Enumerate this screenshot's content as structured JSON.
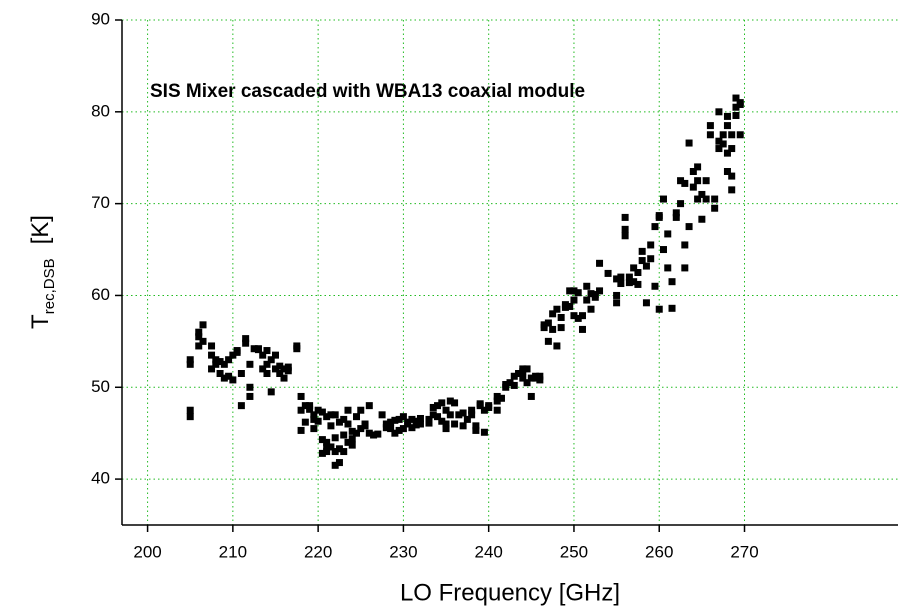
{
  "chart_data": {
    "type": "scatter",
    "annotation": "SIS Mixer cascaded with WBA13 coaxial module",
    "x_label": "LO Frequency [GHz]",
    "y_label": {
      "symbol": "T",
      "subscript": "rec,DSB",
      "unit": "[K]"
    },
    "color": "#000000",
    "grid": true,
    "grid_color": "#22bb22",
    "xlim": [
      197,
      288
    ],
    "ylim": [
      35,
      90
    ],
    "xticks": [
      200,
      210,
      220,
      230,
      240,
      250,
      260,
      270
    ],
    "yticks": [
      40,
      50,
      60,
      70,
      80,
      90
    ],
    "x": [
      205,
      205,
      205,
      205,
      206,
      206,
      206,
      206.5,
      206.5,
      207.5,
      207.5,
      207.5,
      208,
      208,
      208.5,
      208.5,
      209,
      209,
      209.5,
      209.5,
      210,
      210,
      210.5,
      210.5,
      211,
      211,
      211.5,
      211.5,
      212,
      212,
      212,
      212.5,
      213,
      213,
      213.5,
      213.5,
      214,
      214,
      214,
      214.5,
      214.5,
      215,
      215,
      215.5,
      215.5,
      216,
      216,
      216.5,
      216.5,
      217.5,
      217.5,
      218,
      218,
      218,
      218.5,
      218.5,
      219,
      219,
      219.5,
      219.5,
      219.5,
      220,
      220,
      220.5,
      220.5,
      220.5,
      221,
      221,
      221,
      221,
      221.5,
      221.5,
      221.5,
      222,
      222,
      222,
      222,
      222.5,
      222.5,
      222.5,
      223,
      223,
      223,
      223.5,
      223.5,
      223.5,
      224,
      224,
      224,
      224.5,
      224.5,
      225,
      225,
      225.5,
      225.5,
      226,
      226,
      226.5,
      227,
      227.5,
      228,
      228,
      228.5,
      228.5,
      229,
      229,
      229.5,
      229.5,
      230,
      230,
      230.5,
      230.5,
      231,
      231,
      231.5,
      231.5,
      232,
      232,
      233,
      233,
      233.5,
      233.5,
      234,
      234,
      234.5,
      234.5,
      235,
      235,
      235,
      235.5,
      235.5,
      236,
      236,
      236.5,
      237,
      237,
      237.5,
      238,
      238,
      238.5,
      238.5,
      239,
      239,
      239.5,
      239.5,
      240,
      240,
      241,
      241,
      241,
      241.5,
      242,
      242,
      242.5,
      243,
      243,
      243.5,
      244,
      244,
      244,
      244.5,
      244.5,
      245,
      245,
      245.5,
      245.5,
      246,
      246,
      246.5,
      246.5,
      247,
      247,
      247.5,
      247.5,
      248,
      248,
      248.5,
      248.5,
      249,
      249,
      249.5,
      249.5,
      250,
      250,
      250,
      250.5,
      250.5,
      251,
      251,
      251.5,
      251.5,
      252,
      252,
      252.5,
      252.5,
      253,
      253,
      254,
      255,
      255,
      255,
      255.5,
      255.5,
      256,
      256,
      256,
      256.5,
      256.5,
      257,
      257,
      257.5,
      257.5,
      258,
      258,
      258.5,
      258.5,
      259,
      259,
      259.5,
      259.5,
      260,
      260,
      260,
      260.5,
      260.5,
      261,
      261,
      261.5,
      261.5,
      262,
      262,
      262.5,
      262.5,
      263,
      263,
      263,
      263.5,
      263.5,
      264,
      264,
      264.5,
      264.5,
      264.5,
      265,
      265,
      265.5,
      265.5,
      266,
      266,
      266.5,
      266.5,
      267,
      267,
      267,
      267.5,
      267.5,
      268,
      268,
      268,
      268,
      268.5,
      268.5,
      268.5,
      268.5,
      269,
      269,
      269,
      269.5,
      269.5,
      269.5
    ],
    "values": [
      52.5,
      53,
      47.5,
      46.8,
      55.5,
      56,
      54.5,
      56.8,
      55,
      53.5,
      52,
      54.5,
      52.5,
      53,
      51.5,
      52.8,
      51,
      52.5,
      51.2,
      53,
      53.5,
      50.8,
      54,
      53.8,
      51.5,
      48,
      54.8,
      55.3,
      50,
      49,
      52.5,
      54.2,
      54.1,
      54.2,
      52,
      53.5,
      52.5,
      54,
      51.5,
      49.5,
      53,
      52,
      53.5,
      51.5,
      52.3,
      51,
      52,
      52.2,
      51.8,
      54.5,
      54.2,
      49,
      47.5,
      45.3,
      48,
      46.2,
      47.6,
      48,
      47,
      45.5,
      46.5,
      47.5,
      46.3,
      42.8,
      44.3,
      47.3,
      43.5,
      46.8,
      43,
      44,
      47,
      43.5,
      45.8,
      43,
      44.5,
      47,
      41.5,
      43.3,
      41.8,
      46.2,
      44.8,
      46.5,
      43,
      47.5,
      44,
      46,
      43.7,
      44.4,
      45.2,
      45,
      46.8,
      45.5,
      47.5,
      46,
      45.8,
      48,
      45,
      44.8,
      44.9,
      47,
      46,
      45.6,
      45.5,
      46.2,
      45,
      46.4,
      46.5,
      45.3,
      46.8,
      45.5,
      46,
      46.2,
      46.5,
      45.6,
      45.9,
      46.3,
      46,
      46.6,
      46.5,
      46.1,
      47,
      47.8,
      46.8,
      48,
      48.3,
      46.3,
      46,
      45.5,
      47.5,
      48.5,
      47,
      46,
      48.3,
      47,
      47.2,
      45.8,
      46.5,
      47.5,
      47,
      45.8,
      45.3,
      48.2,
      48,
      45.1,
      47.5,
      48,
      47.8,
      48.5,
      49,
      47.5,
      48.8,
      50.3,
      50,
      50.5,
      51.2,
      50.2,
      51.5,
      51.7,
      52,
      51,
      50.5,
      52,
      49,
      51,
      51,
      51.2,
      50.8,
      51.2,
      56.8,
      56.5,
      57,
      55,
      58,
      56.3,
      54.5,
      58.5,
      57.6,
      56.5,
      58.7,
      59,
      60.5,
      58.8,
      60.5,
      57.8,
      59.5,
      57.5,
      60.3,
      56.3,
      57.8,
      61,
      59.5,
      58.5,
      60.2,
      59.8,
      60.1,
      60.5,
      63.5,
      62.4,
      61.8,
      60,
      59.2,
      62,
      61.3,
      68.5,
      66.5,
      67.2,
      62,
      61.4,
      63,
      61.5,
      61.2,
      62.5,
      64.8,
      63.8,
      59.2,
      63.2,
      65.5,
      64,
      61,
      67.5,
      68.5,
      68.7,
      58.5,
      70.5,
      65,
      66.7,
      63,
      58.6,
      61.5,
      69,
      68.5,
      70,
      72.5,
      72.2,
      63,
      65.5,
      76.6,
      67.5,
      71.8,
      73.5,
      72.5,
      74,
      70.5,
      68.3,
      71,
      70.5,
      72.5,
      77.5,
      78.5,
      69.5,
      70.5,
      76,
      76.8,
      80,
      76.5,
      77.5,
      75.5,
      78.5,
      79.5,
      73.5,
      76,
      77.5,
      73,
      71.5,
      81.5,
      80.5,
      79.6,
      80.8,
      81,
      77.5
    ]
  }
}
